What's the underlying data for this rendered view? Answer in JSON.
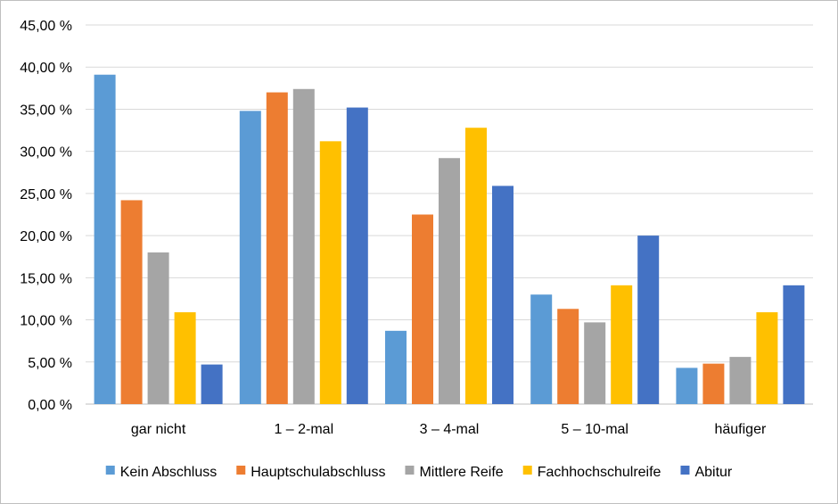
{
  "chart_data": {
    "type": "bar",
    "categories": [
      "gar nicht",
      "1 – 2-mal",
      "3 – 4-mal",
      "5 – 10-mal",
      "häufiger"
    ],
    "series": [
      {
        "name": "Kein Abschluss",
        "color": "#5b9bd5",
        "values": [
          39.1,
          34.8,
          8.7,
          13.0,
          4.3
        ]
      },
      {
        "name": "Hauptschulabschluss",
        "color": "#ed7d31",
        "values": [
          24.2,
          37.0,
          22.5,
          11.3,
          4.8
        ]
      },
      {
        "name": "Mittlere Reife",
        "color": "#a5a5a5",
        "values": [
          18.0,
          37.4,
          29.2,
          9.7,
          5.6
        ]
      },
      {
        "name": "Fachhochschulreife",
        "color": "#ffc000",
        "values": [
          10.9,
          31.2,
          32.8,
          14.1,
          10.9
        ]
      },
      {
        "name": "Abitur",
        "color": "#4472c4",
        "values": [
          4.7,
          35.2,
          25.9,
          20.0,
          14.1
        ]
      }
    ],
    "yticks": [
      "0,00 %",
      "5,00 %",
      "10,00 %",
      "15,00 %",
      "20,00 %",
      "25,00 %",
      "30,00 %",
      "35,00 %",
      "40,00 %",
      "45,00 %"
    ],
    "ylim": [
      0,
      45
    ],
    "ystep": 5,
    "grid": true,
    "legend_position": "bottom",
    "title": "",
    "xlabel": "",
    "ylabel": ""
  }
}
